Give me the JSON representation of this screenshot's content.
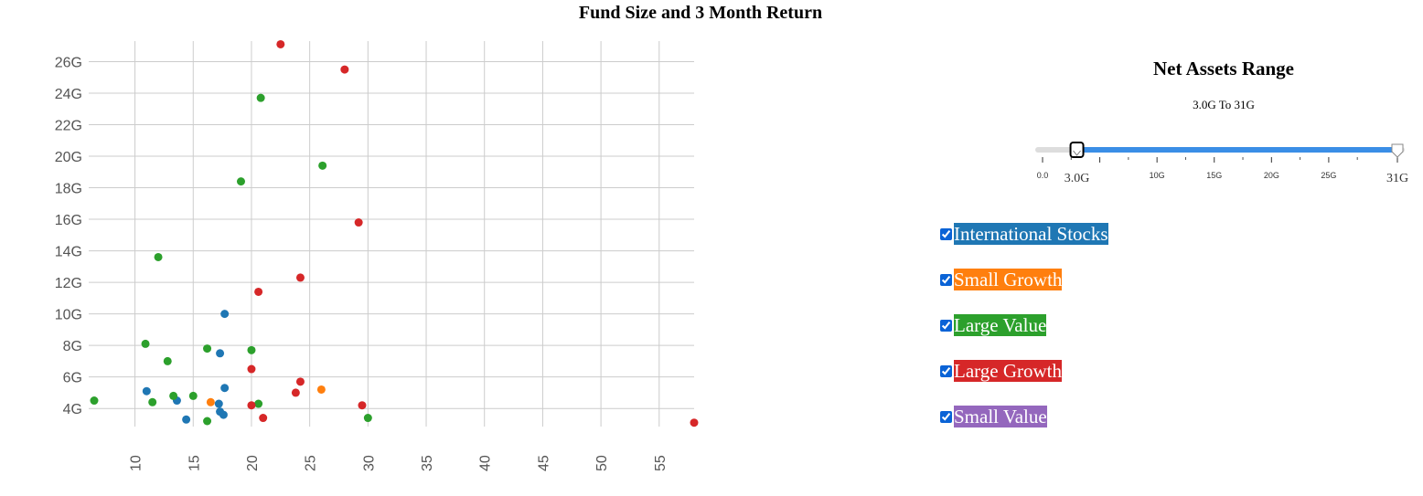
{
  "chart_data": {
    "type": "scatter",
    "title": "Fund Size and 3 Month Return",
    "xlabel": "",
    "ylabel": "",
    "xlim": [
      6.5,
      58
    ],
    "ylim": [
      3.2,
      27.3
    ],
    "grid": true,
    "x_ticks": [
      "10",
      "15",
      "20",
      "25",
      "30",
      "35",
      "40",
      "45",
      "50",
      "55"
    ],
    "x_tick_values": [
      10,
      15,
      20,
      25,
      30,
      35,
      40,
      45,
      50,
      55
    ],
    "y_ticks": [
      "4G",
      "6G",
      "8G",
      "10G",
      "12G",
      "14G",
      "16G",
      "18G",
      "20G",
      "22G",
      "24G",
      "26G"
    ],
    "y_tick_values": [
      4,
      6,
      8,
      10,
      12,
      14,
      16,
      18,
      20,
      22,
      24,
      26
    ],
    "series": [
      {
        "name": "International Stocks",
        "color": "#1f77b4",
        "points": [
          [
            11.0,
            5.1
          ],
          [
            13.6,
            4.5
          ],
          [
            14.4,
            3.3
          ],
          [
            17.2,
            4.3
          ],
          [
            17.3,
            7.5
          ],
          [
            17.3,
            3.8
          ],
          [
            17.6,
            3.6
          ],
          [
            17.7,
            5.3
          ],
          [
            17.7,
            10.0
          ]
        ]
      },
      {
        "name": "Small Growth",
        "color": "#ff7f0e",
        "points": [
          [
            16.5,
            4.4
          ],
          [
            26.0,
            5.2
          ]
        ]
      },
      {
        "name": "Large Value",
        "color": "#2ca02c",
        "points": [
          [
            6.5,
            4.5
          ],
          [
            10.9,
            8.1
          ],
          [
            11.5,
            4.4
          ],
          [
            12.0,
            13.6
          ],
          [
            12.8,
            7.0
          ],
          [
            13.3,
            4.8
          ],
          [
            15.0,
            4.8
          ],
          [
            16.2,
            7.8
          ],
          [
            16.2,
            3.2
          ],
          [
            19.1,
            18.4
          ],
          [
            20.0,
            7.7
          ],
          [
            20.6,
            4.3
          ],
          [
            20.8,
            23.7
          ],
          [
            26.1,
            19.4
          ],
          [
            30.0,
            3.4
          ]
        ]
      },
      {
        "name": "Large Growth",
        "color": "#d62728",
        "points": [
          [
            22.5,
            27.1
          ],
          [
            28.0,
            25.5
          ],
          [
            29.2,
            15.8
          ],
          [
            24.2,
            12.3
          ],
          [
            20.6,
            11.4
          ],
          [
            20.0,
            6.5
          ],
          [
            20.0,
            4.2
          ],
          [
            24.2,
            5.7
          ],
          [
            23.8,
            5.0
          ],
          [
            29.5,
            4.2
          ],
          [
            21.0,
            3.4
          ],
          [
            58.0,
            3.1
          ]
        ]
      },
      {
        "name": "Small Value",
        "color": "#9467bd",
        "points": []
      }
    ]
  },
  "range_panel": {
    "title": "Net Assets Range",
    "range_text": "3.0G To 31G",
    "slider": {
      "min": 0,
      "max": 31,
      "low": 3.0,
      "high": 31,
      "low_label": "3.0G",
      "high_label": "31G",
      "tick_values": [
        0,
        5,
        10,
        15,
        20,
        25,
        31
      ],
      "tick_labels": [
        "0.0",
        "",
        "10G",
        "15G",
        "20G",
        "25G",
        ""
      ],
      "track_color": "#dddddd",
      "fill_color": "#3a8ee6"
    }
  },
  "legend": [
    {
      "label": "International Stocks",
      "color": "#1f77b4",
      "checked": true
    },
    {
      "label": "Small Growth",
      "color": "#ff7f0e",
      "checked": true
    },
    {
      "label": "Large Value",
      "color": "#2ca02c",
      "checked": true
    },
    {
      "label": "Large Growth",
      "color": "#d62728",
      "checked": true
    },
    {
      "label": "Small Value",
      "color": "#9467bd",
      "checked": true
    }
  ]
}
